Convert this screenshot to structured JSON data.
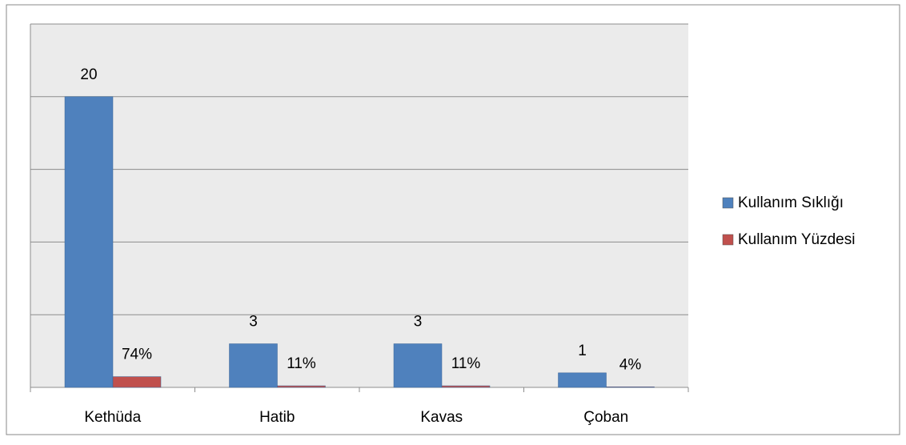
{
  "chart_data": {
    "type": "bar",
    "categories": [
      "Kethüda",
      "Hatib",
      "Kavas",
      "Çoban"
    ],
    "series": [
      {
        "name": "Kullanım Sıklığı",
        "color": "#4f81bd",
        "values": [
          20,
          3,
          3,
          1
        ]
      },
      {
        "name": "Kullanım Yüzdesi",
        "color": "#c0504d",
        "values": [
          0.74,
          0.11,
          0.11,
          0.04
        ],
        "value_labels": [
          "74%",
          "11%",
          "11%",
          "4%"
        ]
      }
    ],
    "ylim": [
      0,
      25
    ],
    "yticks": [
      0,
      5,
      10,
      15,
      20,
      25
    ],
    "grid": true,
    "legend": "right"
  }
}
